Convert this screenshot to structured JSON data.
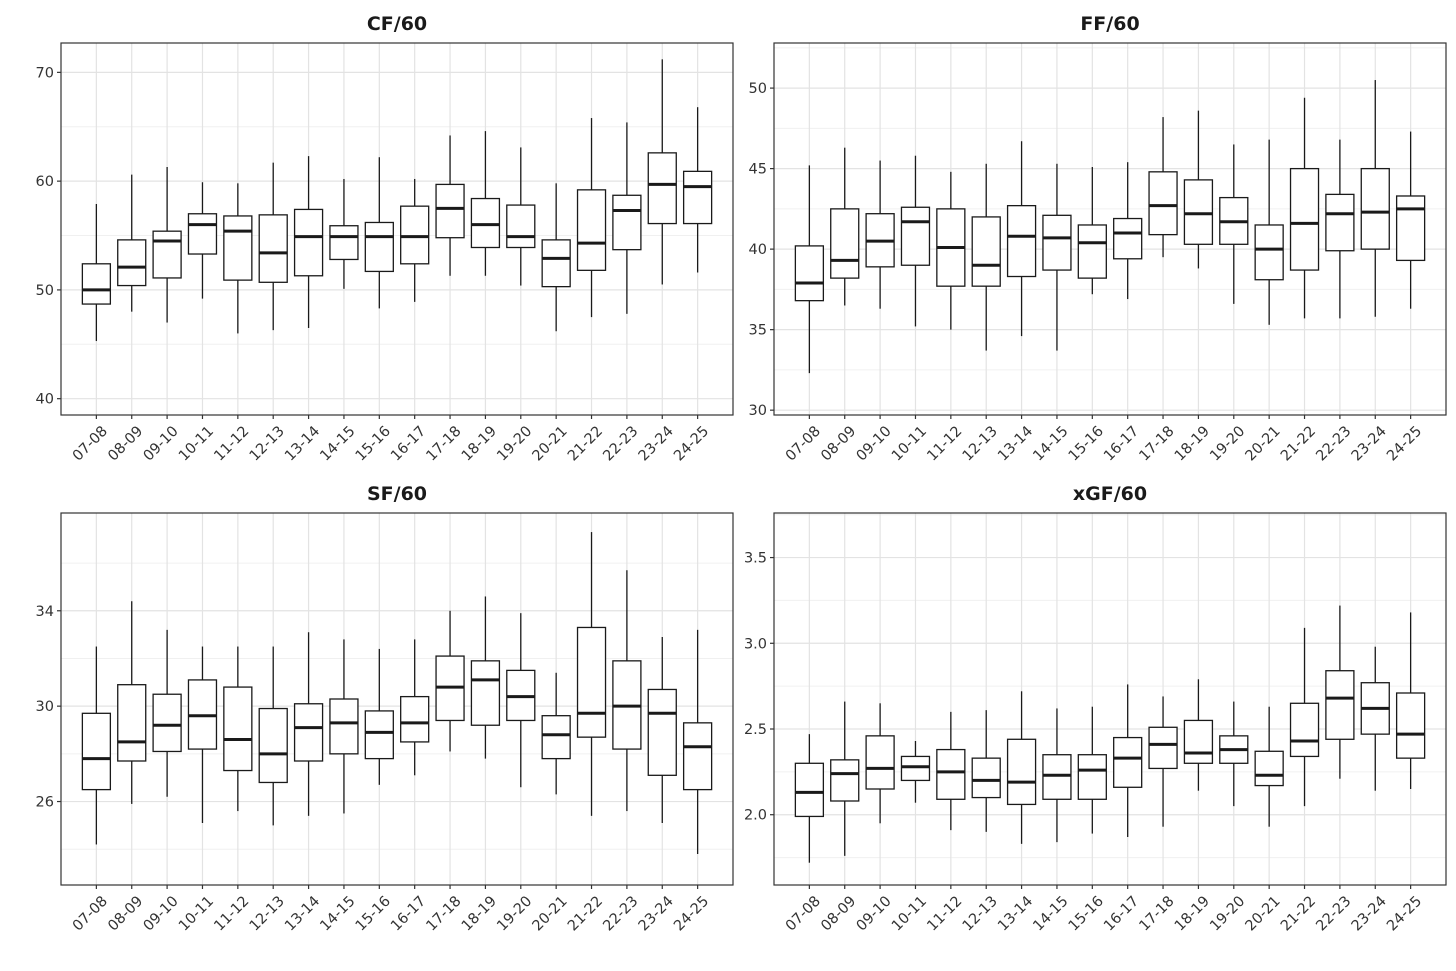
{
  "chart_data": [
    {
      "type": "boxplot",
      "title": "CF/60",
      "categories": [
        "07-08",
        "08-09",
        "09-10",
        "10-11",
        "11-12",
        "12-13",
        "13-14",
        "14-15",
        "15-16",
        "16-17",
        "17-18",
        "18-19",
        "19-20",
        "20-21",
        "21-22",
        "22-23",
        "23-24",
        "24-25"
      ],
      "boxes": [
        {
          "min": 45.3,
          "q1": 48.7,
          "median": 50.0,
          "q3": 52.4,
          "max": 57.9
        },
        {
          "min": 48.0,
          "q1": 50.4,
          "median": 52.1,
          "q3": 54.6,
          "max": 60.6
        },
        {
          "min": 47.0,
          "q1": 51.1,
          "median": 54.5,
          "q3": 55.4,
          "max": 61.3
        },
        {
          "min": 49.2,
          "q1": 53.3,
          "median": 56.0,
          "q3": 57.0,
          "max": 59.9
        },
        {
          "min": 46.0,
          "q1": 50.9,
          "median": 55.4,
          "q3": 56.8,
          "max": 59.8
        },
        {
          "min": 46.3,
          "q1": 50.7,
          "median": 53.4,
          "q3": 56.9,
          "max": 61.7
        },
        {
          "min": 46.5,
          "q1": 51.3,
          "median": 54.9,
          "q3": 57.4,
          "max": 62.3
        },
        {
          "min": 50.1,
          "q1": 52.8,
          "median": 54.9,
          "q3": 55.9,
          "max": 60.2
        },
        {
          "min": 48.3,
          "q1": 51.7,
          "median": 54.9,
          "q3": 56.2,
          "max": 62.2
        },
        {
          "min": 48.9,
          "q1": 52.4,
          "median": 54.9,
          "q3": 57.7,
          "max": 60.2
        },
        {
          "min": 51.3,
          "q1": 54.8,
          "median": 57.5,
          "q3": 59.7,
          "max": 64.2
        },
        {
          "min": 51.3,
          "q1": 53.9,
          "median": 56.0,
          "q3": 58.4,
          "max": 64.6
        },
        {
          "min": 50.4,
          "q1": 53.9,
          "median": 54.9,
          "q3": 57.8,
          "max": 63.1
        },
        {
          "min": 46.2,
          "q1": 50.3,
          "median": 52.9,
          "q3": 54.6,
          "max": 59.8
        },
        {
          "min": 47.5,
          "q1": 51.8,
          "median": 54.3,
          "q3": 59.2,
          "max": 65.8
        },
        {
          "min": 47.8,
          "q1": 53.7,
          "median": 57.3,
          "q3": 58.7,
          "max": 65.4
        },
        {
          "min": 50.5,
          "q1": 56.1,
          "median": 59.7,
          "q3": 62.6,
          "max": 71.2
        },
        {
          "min": 51.6,
          "q1": 56.1,
          "median": 59.5,
          "q3": 60.9,
          "max": 66.8
        }
      ],
      "yticks": [
        40,
        50,
        60,
        70
      ],
      "ylim": [
        38.5,
        72.7
      ],
      "grid": true,
      "legend": "none"
    },
    {
      "type": "boxplot",
      "title": "FF/60",
      "categories": [
        "07-08",
        "08-09",
        "09-10",
        "10-11",
        "11-12",
        "12-13",
        "13-14",
        "14-15",
        "15-16",
        "16-17",
        "17-18",
        "18-19",
        "19-20",
        "20-21",
        "21-22",
        "22-23",
        "23-24",
        "24-25"
      ],
      "boxes": [
        {
          "min": 32.3,
          "q1": 36.8,
          "median": 37.9,
          "q3": 40.2,
          "max": 45.2
        },
        {
          "min": 36.5,
          "q1": 38.2,
          "median": 39.3,
          "q3": 42.5,
          "max": 46.3
        },
        {
          "min": 36.3,
          "q1": 38.9,
          "median": 40.5,
          "q3": 42.2,
          "max": 45.5
        },
        {
          "min": 35.2,
          "q1": 39.0,
          "median": 41.7,
          "q3": 42.6,
          "max": 45.8
        },
        {
          "min": 35.0,
          "q1": 37.7,
          "median": 40.1,
          "q3": 42.5,
          "max": 44.8
        },
        {
          "min": 33.7,
          "q1": 37.7,
          "median": 39.0,
          "q3": 42.0,
          "max": 45.3
        },
        {
          "min": 34.6,
          "q1": 38.3,
          "median": 40.8,
          "q3": 42.7,
          "max": 46.7
        },
        {
          "min": 33.7,
          "q1": 38.7,
          "median": 40.7,
          "q3": 42.1,
          "max": 45.3
        },
        {
          "min": 37.2,
          "q1": 38.2,
          "median": 40.4,
          "q3": 41.5,
          "max": 45.1
        },
        {
          "min": 36.9,
          "q1": 39.4,
          "median": 41.0,
          "q3": 41.9,
          "max": 45.4
        },
        {
          "min": 39.5,
          "q1": 40.9,
          "median": 42.7,
          "q3": 44.8,
          "max": 48.2
        },
        {
          "min": 38.8,
          "q1": 40.3,
          "median": 42.2,
          "q3": 44.3,
          "max": 48.6
        },
        {
          "min": 36.6,
          "q1": 40.3,
          "median": 41.7,
          "q3": 43.2,
          "max": 46.5
        },
        {
          "min": 35.3,
          "q1": 38.1,
          "median": 40.0,
          "q3": 41.5,
          "max": 46.8
        },
        {
          "min": 35.7,
          "q1": 38.7,
          "median": 41.6,
          "q3": 45.0,
          "max": 49.4
        },
        {
          "min": 35.7,
          "q1": 39.9,
          "median": 42.2,
          "q3": 43.4,
          "max": 46.8
        },
        {
          "min": 35.8,
          "q1": 40.0,
          "median": 42.3,
          "q3": 45.0,
          "max": 50.5
        },
        {
          "min": 36.3,
          "q1": 39.3,
          "median": 42.5,
          "q3": 43.3,
          "max": 47.3
        }
      ],
      "yticks": [
        30,
        35,
        40,
        45,
        50
      ],
      "ylim": [
        29.7,
        52.8
      ],
      "grid": true,
      "legend": "none"
    },
    {
      "type": "boxplot",
      "title": "SF/60",
      "categories": [
        "07-08",
        "08-09",
        "09-10",
        "10-11",
        "11-12",
        "12-13",
        "13-14",
        "14-15",
        "15-16",
        "16-17",
        "17-18",
        "18-19",
        "19-20",
        "20-21",
        "21-22",
        "22-23",
        "23-24",
        "24-25"
      ],
      "boxes": [
        {
          "min": 24.2,
          "q1": 26.5,
          "median": 27.8,
          "q3": 29.7,
          "max": 32.5
        },
        {
          "min": 25.9,
          "q1": 27.7,
          "median": 28.5,
          "q3": 30.9,
          "max": 34.4
        },
        {
          "min": 26.2,
          "q1": 28.1,
          "median": 29.2,
          "q3": 30.5,
          "max": 33.2
        },
        {
          "min": 25.1,
          "q1": 28.2,
          "median": 29.6,
          "q3": 31.1,
          "max": 32.5
        },
        {
          "min": 25.6,
          "q1": 27.3,
          "median": 28.6,
          "q3": 30.8,
          "max": 32.5
        },
        {
          "min": 25.0,
          "q1": 26.8,
          "median": 28.0,
          "q3": 29.9,
          "max": 32.5
        },
        {
          "min": 25.4,
          "q1": 27.7,
          "median": 29.1,
          "q3": 30.1,
          "max": 33.1
        },
        {
          "min": 25.5,
          "q1": 28.0,
          "median": 29.3,
          "q3": 30.3,
          "max": 32.8
        },
        {
          "min": 26.7,
          "q1": 27.8,
          "median": 28.9,
          "q3": 29.8,
          "max": 32.4
        },
        {
          "min": 27.1,
          "q1": 28.5,
          "median": 29.3,
          "q3": 30.4,
          "max": 32.8
        },
        {
          "min": 28.1,
          "q1": 29.4,
          "median": 30.8,
          "q3": 32.1,
          "max": 34.0
        },
        {
          "min": 27.8,
          "q1": 29.2,
          "median": 31.1,
          "q3": 31.9,
          "max": 34.6
        },
        {
          "min": 26.6,
          "q1": 29.4,
          "median": 30.4,
          "q3": 31.5,
          "max": 33.9
        },
        {
          "min": 26.3,
          "q1": 27.8,
          "median": 28.8,
          "q3": 29.6,
          "max": 31.4
        },
        {
          "min": 25.4,
          "q1": 28.7,
          "median": 29.7,
          "q3": 33.3,
          "max": 37.3
        },
        {
          "min": 25.6,
          "q1": 28.2,
          "median": 30.0,
          "q3": 31.9,
          "max": 35.7
        },
        {
          "min": 25.1,
          "q1": 27.1,
          "median": 29.7,
          "q3": 30.7,
          "max": 32.9
        },
        {
          "min": 23.8,
          "q1": 26.5,
          "median": 28.3,
          "q3": 29.3,
          "max": 33.2
        }
      ],
      "yticks": [
        26,
        30,
        34
      ],
      "ylim": [
        22.5,
        38.1
      ],
      "grid": true,
      "legend": "none"
    },
    {
      "type": "boxplot",
      "title": "xGF/60",
      "categories": [
        "07-08",
        "08-09",
        "09-10",
        "10-11",
        "11-12",
        "12-13",
        "13-14",
        "14-15",
        "15-16",
        "16-17",
        "17-18",
        "18-19",
        "19-20",
        "20-21",
        "21-22",
        "22-23",
        "23-24",
        "24-25"
      ],
      "boxes": [
        {
          "min": 1.72,
          "q1": 1.99,
          "median": 2.13,
          "q3": 2.3,
          "max": 2.47
        },
        {
          "min": 1.76,
          "q1": 2.08,
          "median": 2.24,
          "q3": 2.32,
          "max": 2.66
        },
        {
          "min": 1.95,
          "q1": 2.15,
          "median": 2.27,
          "q3": 2.46,
          "max": 2.65
        },
        {
          "min": 2.07,
          "q1": 2.2,
          "median": 2.28,
          "q3": 2.34,
          "max": 2.43
        },
        {
          "min": 1.91,
          "q1": 2.09,
          "median": 2.25,
          "q3": 2.38,
          "max": 2.6
        },
        {
          "min": 1.9,
          "q1": 2.1,
          "median": 2.2,
          "q3": 2.33,
          "max": 2.61
        },
        {
          "min": 1.83,
          "q1": 2.06,
          "median": 2.19,
          "q3": 2.44,
          "max": 2.72
        },
        {
          "min": 1.84,
          "q1": 2.09,
          "median": 2.23,
          "q3": 2.35,
          "max": 2.62
        },
        {
          "min": 1.89,
          "q1": 2.09,
          "median": 2.26,
          "q3": 2.35,
          "max": 2.63
        },
        {
          "min": 1.87,
          "q1": 2.16,
          "median": 2.33,
          "q3": 2.45,
          "max": 2.76
        },
        {
          "min": 1.93,
          "q1": 2.27,
          "median": 2.41,
          "q3": 2.51,
          "max": 2.69
        },
        {
          "min": 2.14,
          "q1": 2.3,
          "median": 2.36,
          "q3": 2.55,
          "max": 2.79
        },
        {
          "min": 2.05,
          "q1": 2.3,
          "median": 2.38,
          "q3": 2.46,
          "max": 2.66
        },
        {
          "min": 1.93,
          "q1": 2.17,
          "median": 2.23,
          "q3": 2.37,
          "max": 2.63
        },
        {
          "min": 2.05,
          "q1": 2.34,
          "median": 2.43,
          "q3": 2.65,
          "max": 3.09
        },
        {
          "min": 2.21,
          "q1": 2.44,
          "median": 2.68,
          "q3": 2.84,
          "max": 3.22
        },
        {
          "min": 2.14,
          "q1": 2.47,
          "median": 2.62,
          "q3": 2.77,
          "max": 2.98
        },
        {
          "min": 2.15,
          "q1": 2.33,
          "median": 2.47,
          "q3": 2.71,
          "max": 3.18
        }
      ],
      "yticks": [
        2.0,
        2.5,
        3.0,
        3.5
      ],
      "ytick_labels": [
        "2.0",
        "2.5",
        "3.0",
        "3.5"
      ],
      "ylim": [
        1.59,
        3.76
      ],
      "grid": true,
      "legend": "none"
    }
  ]
}
